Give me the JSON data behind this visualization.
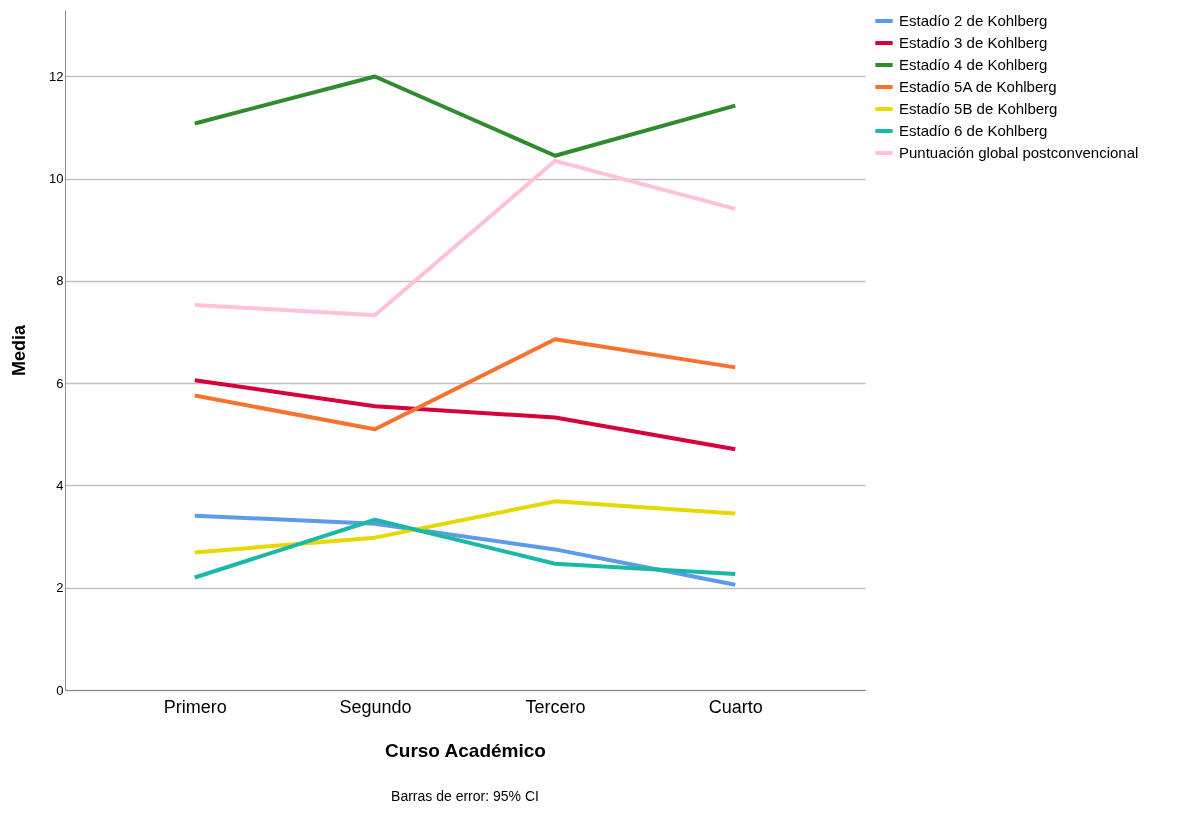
{
  "chart_data": {
    "type": "line",
    "xlabel": "Curso Académico",
    "ylabel": "Media",
    "categories": [
      "Primero",
      "Segundo",
      "Tercero",
      "Cuarto"
    ],
    "series": [
      {
        "name": "Estadío 2 de Kohlberg",
        "color": "#5b9bea",
        "values": [
          3.41,
          3.25,
          2.75,
          2.06
        ]
      },
      {
        "name": "Estadío 3 de Kohlberg",
        "color": "#d6003a",
        "values": [
          6.06,
          5.55,
          5.33,
          4.71
        ]
      },
      {
        "name": "Estadío 4 de Kohlberg",
        "color": "#2e8b2e",
        "values": [
          11.08,
          12.0,
          10.45,
          11.43
        ]
      },
      {
        "name": "Estadío 5A de Kohlberg",
        "color": "#f5732f",
        "values": [
          5.76,
          5.1,
          6.86,
          6.31
        ]
      },
      {
        "name": "Estadío 5B de Kohlberg",
        "color": "#e6d800",
        "values": [
          2.69,
          2.98,
          3.69,
          3.45
        ]
      },
      {
        "name": "Estadío 6 de Kohlberg",
        "color": "#1ab9a6",
        "values": [
          2.2,
          3.33,
          2.47,
          2.27
        ]
      },
      {
        "name": "Puntuación global postconvencional",
        "color": "#ffc0dc",
        "values": [
          7.53,
          7.33,
          10.35,
          9.41
        ]
      }
    ],
    "ylim": [
      0,
      13.3
    ],
    "yticks": [
      0,
      2,
      4,
      6,
      8,
      10,
      12
    ],
    "grid": "y",
    "legend": "top right",
    "marker": "none",
    "line_style": "solid",
    "annotations": [
      "Barras de error: 95% CI"
    ]
  }
}
